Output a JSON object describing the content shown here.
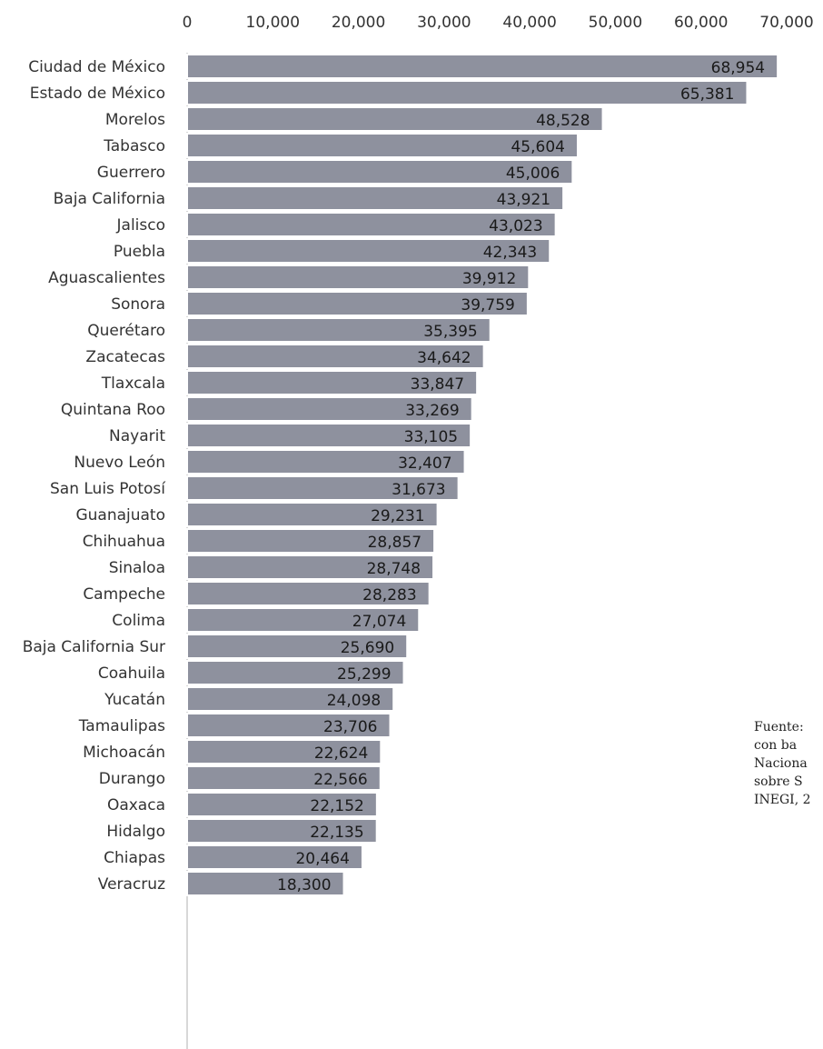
{
  "colors": {
    "bar": "#8e919e",
    "axis": "#b0b0b0"
  },
  "source_note": "Fuente:\ncon ba\nNaciona\nsobre S\nINEGI, 2",
  "chart_data": {
    "type": "bar",
    "orientation": "horizontal",
    "title": "",
    "xlabel": "",
    "ylabel": "",
    "xlim": [
      0,
      70000
    ],
    "xticks": [
      0,
      10000,
      20000,
      30000,
      40000,
      50000,
      60000,
      70000
    ],
    "xtick_labels": [
      "0",
      "10,000",
      "20,000",
      "30,000",
      "40,000",
      "50,000",
      "60,000",
      "70,000"
    ],
    "grid": false,
    "axis_position": "top",
    "categories": [
      "Ciudad de México",
      "Estado de México",
      "Morelos",
      "Tabasco",
      "Guerrero",
      "Baja California",
      "Jalisco",
      "Puebla",
      "Aguascalientes",
      "Sonora",
      "Querétaro",
      "Zacatecas",
      "Tlaxcala",
      "Quintana Roo",
      "Nayarit",
      "Nuevo León",
      "San Luis Potosí",
      "Guanajuato",
      "Chihuahua",
      "Sinaloa",
      "Campeche",
      "Colima",
      "Baja California Sur",
      "Coahuila",
      "Yucatán",
      "Tamaulipas",
      "Michoacán",
      "Durango",
      "Oaxaca",
      "Hidalgo",
      "Chiapas",
      "Veracruz"
    ],
    "values": [
      68954,
      65381,
      48528,
      45604,
      45006,
      43921,
      43023,
      42343,
      39912,
      39759,
      35395,
      34642,
      33847,
      33269,
      33105,
      32407,
      31673,
      29231,
      28857,
      28748,
      28283,
      27074,
      25690,
      25299,
      24098,
      23706,
      22624,
      22566,
      22152,
      22135,
      20464,
      18300
    ],
    "value_labels": [
      "68,954",
      "65,381",
      "48,528",
      "45,604",
      "45,006",
      "43,921",
      "43,023",
      "42,343",
      "39,912",
      "39,759",
      "35,395",
      "34,642",
      "33,847",
      "33,269",
      "33,105",
      "32,407",
      "31,673",
      "29,231",
      "28,857",
      "28,748",
      "28,283",
      "27,074",
      "25,690",
      "25,299",
      "24,098",
      "23,706",
      "22,624",
      "22,566",
      "22,152",
      "22,135",
      "20,464",
      "18,300"
    ]
  }
}
